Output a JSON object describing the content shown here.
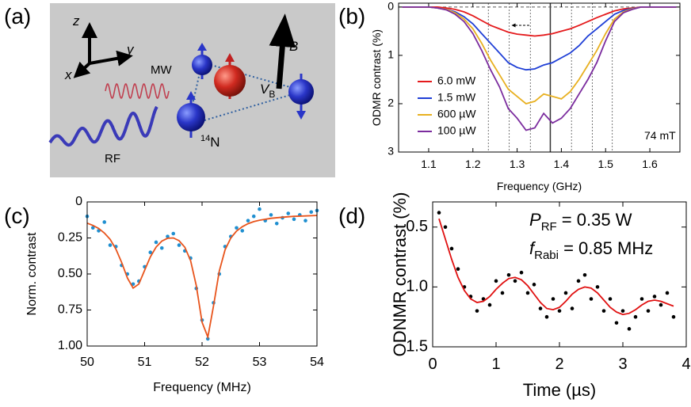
{
  "diagram": {
    "panel_label": "(a)",
    "labels": [
      "z",
      "y",
      "x",
      "MW",
      "B",
      "RF"
    ],
    "potential": {
      "symbol": "V",
      "subscript": "B"
    },
    "nucleus": {
      "mass": "14",
      "symbol": "N"
    }
  },
  "chart_data": [
    {
      "type": "line",
      "panel_label": "(b)",
      "x_label": "Frequency (GHz)",
      "y_label": "ODMR contrast (%)",
      "annotation": "74 mT",
      "xlim": [
        1.032,
        1.668
      ],
      "xticks": [
        1.1,
        1.2,
        1.3,
        1.4,
        1.5,
        1.6
      ],
      "ylim": [
        -0.08,
        3
      ],
      "yticks": [
        0,
        1,
        2,
        3
      ],
      "y_inverted": true,
      "vlines": [
        {
          "value": 1.235,
          "style": "dashed"
        },
        {
          "value": 1.282,
          "style": "dashed"
        },
        {
          "value": 1.33,
          "style": "dashed"
        },
        {
          "value": 1.375,
          "style": "solid"
        },
        {
          "value": 1.423,
          "style": "dashed"
        },
        {
          "value": 1.47,
          "style": "dashed"
        },
        {
          "value": 1.515,
          "style": "dashed"
        }
      ],
      "hlines": [
        {
          "value": 0,
          "style": "dashed"
        }
      ],
      "x": [
        1.04,
        1.06,
        1.08,
        1.1,
        1.12,
        1.14,
        1.16,
        1.18,
        1.2,
        1.22,
        1.24,
        1.26,
        1.28,
        1.3,
        1.32,
        1.34,
        1.36,
        1.38,
        1.4,
        1.42,
        1.44,
        1.46,
        1.48,
        1.5,
        1.52,
        1.54,
        1.56,
        1.58,
        1.6,
        1.62,
        1.64,
        1.66
      ],
      "series": [
        {
          "name": "6.0 mW",
          "color": "#e41a1c",
          "values": [
            0,
            0,
            0,
            0,
            0,
            0.02,
            0.05,
            0.1,
            0.18,
            0.28,
            0.38,
            0.45,
            0.52,
            0.56,
            0.58,
            0.6,
            0.58,
            0.55,
            0.5,
            0.45,
            0.38,
            0.3,
            0.22,
            0.15,
            0.08,
            0.04,
            0.02,
            0,
            0,
            0,
            0,
            0
          ]
        },
        {
          "name": "1.5 mW",
          "color": "#1f3fd6",
          "values": [
            0,
            0,
            0,
            0,
            0.02,
            0.05,
            0.1,
            0.2,
            0.35,
            0.55,
            0.75,
            0.95,
            1.15,
            1.25,
            1.3,
            1.28,
            1.2,
            1.15,
            1.05,
            0.95,
            0.8,
            0.6,
            0.45,
            0.3,
            0.15,
            0.07,
            0.03,
            0,
            0,
            0,
            0,
            0
          ]
        },
        {
          "name": "600 µW",
          "color": "#e8b020",
          "values": [
            0,
            0,
            0,
            0,
            0.02,
            0.05,
            0.12,
            0.25,
            0.45,
            0.75,
            1.1,
            1.4,
            1.7,
            1.85,
            2.0,
            1.95,
            1.8,
            1.85,
            1.9,
            1.75,
            1.5,
            1.2,
            0.9,
            0.55,
            0.25,
            0.1,
            0.04,
            0,
            0,
            0,
            0,
            0
          ]
        },
        {
          "name": "100 µW",
          "color": "#7b2c9e",
          "values": [
            0,
            0,
            0,
            0,
            0.02,
            0.06,
            0.15,
            0.3,
            0.55,
            0.9,
            1.3,
            1.65,
            2.1,
            2.3,
            2.55,
            2.5,
            2.2,
            2.4,
            2.3,
            2.1,
            1.8,
            1.5,
            1.15,
            0.7,
            0.3,
            0.12,
            0.05,
            0,
            0,
            0,
            0,
            0
          ]
        }
      ]
    },
    {
      "type": "scatter",
      "panel_label": "(c)",
      "x_label": "Frequency (MHz)",
      "y_label": "Norm. contrast",
      "xlim": [
        50,
        54
      ],
      "xticks": [
        50,
        51,
        52,
        53,
        54
      ],
      "ylim": [
        0,
        1
      ],
      "yticks": [
        0,
        0.25,
        {
          "value": 0.5,
          "label": "0.50"
        },
        0.75,
        {
          "value": 1,
          "label": "1.00"
        }
      ],
      "y_inverted": true,
      "series": [
        {
          "style": "marker",
          "color": "#1f8fd0",
          "x": [
            50.0,
            50.1,
            50.2,
            50.3,
            50.4,
            50.5,
            50.6,
            50.7,
            50.8,
            50.9,
            51.0,
            51.1,
            51.2,
            51.3,
            51.4,
            51.5,
            51.6,
            51.7,
            51.8,
            51.9,
            52.0,
            52.1,
            52.2,
            52.3,
            52.4,
            52.5,
            52.6,
            52.7,
            52.8,
            52.9,
            53.0,
            53.1,
            53.2,
            53.3,
            53.4,
            53.5,
            53.6,
            53.7,
            53.8,
            53.9,
            54.0
          ],
          "values": [
            0.1,
            0.18,
            0.2,
            0.14,
            0.3,
            0.31,
            0.44,
            0.5,
            0.57,
            0.55,
            0.45,
            0.35,
            0.28,
            0.32,
            0.24,
            0.22,
            0.3,
            0.34,
            0.39,
            0.6,
            0.82,
            0.95,
            0.7,
            0.5,
            0.31,
            0.24,
            0.18,
            0.2,
            0.13,
            0.1,
            0.05,
            0.13,
            0.09,
            0.15,
            0.11,
            0.08,
            0.12,
            0.09,
            0.13,
            0.07,
            0.06
          ]
        },
        {
          "style": "line",
          "color": "#e8541c",
          "x": [
            50.0,
            50.1,
            50.2,
            50.3,
            50.4,
            50.5,
            50.6,
            50.7,
            50.8,
            50.9,
            51.0,
            51.1,
            51.2,
            51.3,
            51.4,
            51.5,
            51.6,
            51.7,
            51.8,
            51.9,
            52.0,
            52.1,
            52.2,
            52.3,
            52.4,
            52.5,
            52.6,
            52.7,
            52.8,
            52.9,
            53.0,
            53.2,
            53.4,
            53.6,
            53.8,
            54.0
          ],
          "values": [
            0.147,
            0.163,
            0.184,
            0.216,
            0.26,
            0.328,
            0.42,
            0.528,
            0.598,
            0.57,
            0.475,
            0.381,
            0.313,
            0.272,
            0.252,
            0.25,
            0.269,
            0.315,
            0.407,
            0.581,
            0.835,
            0.938,
            0.72,
            0.48,
            0.333,
            0.25,
            0.202,
            0.172,
            0.151,
            0.137,
            0.127,
            0.114,
            0.106,
            0.1,
            0.097,
            0.094
          ]
        }
      ]
    },
    {
      "type": "scatter",
      "panel_label": "(d)",
      "x_label": "Time (µs)",
      "y_label": "ODNMR contrast (%)",
      "annotations": [
        {
          "symbol": "P",
          "subscript": "RF",
          "text": " = 0.35 W"
        },
        {
          "symbol": "f",
          "subscript": "Rabi",
          "text": " = 0.85 MHz"
        }
      ],
      "xlim": [
        0,
        4
      ],
      "xticks": [
        0,
        1,
        2,
        3,
        4
      ],
      "ylim": [
        0.29,
        1.5
      ],
      "yticks": [
        0.5,
        {
          "value": 1,
          "label": "1.0"
        },
        1.5
      ],
      "y_inverted": true,
      "series": [
        {
          "style": "marker",
          "color": "#000000",
          "x": [
            0.1,
            0.2,
            0.3,
            0.4,
            0.5,
            0.6,
            0.7,
            0.8,
            0.9,
            1.0,
            1.1,
            1.2,
            1.3,
            1.4,
            1.5,
            1.6,
            1.7,
            1.8,
            1.9,
            2.0,
            2.1,
            2.2,
            2.3,
            2.4,
            2.5,
            2.6,
            2.7,
            2.8,
            2.9,
            3.0,
            3.1,
            3.2,
            3.3,
            3.4,
            3.5,
            3.6,
            3.7,
            3.8
          ],
          "values": [
            0.38,
            0.5,
            0.68,
            0.85,
            1.0,
            1.08,
            1.2,
            1.1,
            1.15,
            0.95,
            1.05,
            0.9,
            0.95,
            0.88,
            1.05,
            0.98,
            1.18,
            1.25,
            1.1,
            1.2,
            1.05,
            1.18,
            0.95,
            0.9,
            1.1,
            1.0,
            1.2,
            1.1,
            1.3,
            1.2,
            1.35,
            1.25,
            1.1,
            1.2,
            1.08,
            1.15,
            1.05,
            1.25
          ]
        },
        {
          "style": "line",
          "color": "#e01010",
          "x": [
            0.1,
            0.2,
            0.3,
            0.4,
            0.5,
            0.6,
            0.7,
            0.8,
            0.9,
            1.0,
            1.1,
            1.2,
            1.3,
            1.4,
            1.5,
            1.6,
            1.7,
            1.8,
            1.9,
            2.0,
            2.1,
            2.2,
            2.3,
            2.4,
            2.5,
            2.6,
            2.7,
            2.8,
            2.9,
            3.0,
            3.1,
            3.2,
            3.3,
            3.4,
            3.5,
            3.6,
            3.7,
            3.8
          ],
          "values": [
            0.43,
            0.6,
            0.77,
            0.92,
            1.03,
            1.1,
            1.13,
            1.12,
            1.08,
            1.02,
            0.97,
            0.93,
            0.92,
            0.94,
            0.99,
            1.06,
            1.13,
            1.18,
            1.19,
            1.17,
            1.12,
            1.06,
            1.02,
            1.0,
            1.01,
            1.05,
            1.11,
            1.17,
            1.21,
            1.23,
            1.22,
            1.19,
            1.15,
            1.12,
            1.11,
            1.12,
            1.14,
            1.16
          ]
        }
      ]
    }
  ]
}
